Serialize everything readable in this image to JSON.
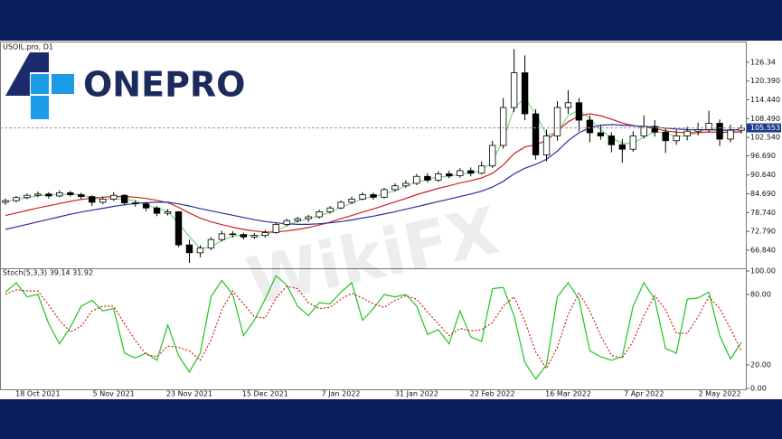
{
  "logo": "ONEPRO",
  "watermark": "WikiFX",
  "chart_data": [
    {
      "type": "candlestick",
      "title": "USOIL.pro, D1",
      "current_price": 105.553,
      "categories": [
        null,
        null,
        null,
        "18 Oct 2021",
        null,
        null,
        null,
        null,
        null,
        null,
        "5 Nov 2021",
        null,
        null,
        null,
        null,
        null,
        null,
        "23 Nov 2021",
        null,
        null,
        null,
        null,
        null,
        null,
        "15 Dec 2021",
        null,
        null,
        null,
        null,
        null,
        null,
        "7 Jan 2022",
        null,
        null,
        null,
        null,
        null,
        null,
        "31 Jan 2022",
        null,
        null,
        null,
        null,
        null,
        null,
        "22 Feb 2022",
        null,
        null,
        null,
        null,
        null,
        null,
        "16 Mar 2022",
        null,
        null,
        null,
        null,
        null,
        null,
        "7 Apr 2022",
        null,
        null,
        null,
        null,
        null,
        null,
        "2 May 2022",
        null,
        null
      ],
      "open": [
        82.0,
        82.5,
        83.5,
        84.2,
        84.6,
        84.0,
        85.0,
        84.4,
        83.8,
        82.0,
        83.0,
        84.2,
        81.8,
        81.5,
        80.2,
        78.5,
        79.0,
        68.5,
        66.0,
        67.5,
        70.2,
        72.0,
        71.8,
        71.0,
        71.5,
        72.4,
        75.0,
        76.2,
        76.8,
        77.4,
        79.0,
        80.2,
        82.0,
        83.0,
        84.4,
        83.6,
        86.0,
        87.2,
        88.0,
        90.2,
        89.0,
        91.0,
        90.4,
        92.0,
        91.2,
        93.5,
        100.0,
        112.0,
        123.0,
        110.0,
        97.0,
        103.0,
        112.0,
        113.5,
        108.0,
        104.0,
        103.0,
        100.2,
        98.8,
        103.0,
        106.0,
        104.2,
        101.5,
        103.0,
        104.5,
        105.0,
        107.0,
        102.0,
        104.8
      ],
      "high": [
        83.2,
        84.0,
        84.8,
        85.4,
        85.2,
        85.8,
        85.6,
        85.0,
        84.2,
        83.8,
        85.2,
        84.6,
        82.6,
        82.0,
        80.8,
        79.8,
        79.2,
        70.2,
        68.4,
        71.0,
        73.0,
        72.8,
        72.4,
        72.2,
        73.2,
        75.6,
        76.8,
        77.4,
        78.0,
        79.6,
        80.8,
        82.6,
        83.8,
        85.2,
        85.0,
        86.6,
        88.0,
        89.0,
        91.0,
        91.2,
        91.8,
        92.0,
        92.8,
        93.0,
        95.0,
        101.5,
        115.0,
        130.5,
        128.5,
        111.5,
        105.0,
        114.0,
        117.5,
        115.0,
        109.5,
        106.5,
        104.2,
        102.0,
        104.5,
        109.5,
        108.0,
        105.5,
        105.0,
        106.0,
        107.2,
        111.0,
        108.2,
        106.6,
        106.6
      ],
      "low": [
        81.2,
        82.0,
        83.0,
        83.6,
        83.2,
        83.6,
        83.8,
        83.0,
        80.8,
        81.4,
        82.4,
        81.0,
        80.6,
        79.2,
        77.6,
        77.8,
        67.8,
        62.8,
        64.6,
        66.8,
        69.6,
        70.8,
        70.2,
        70.4,
        70.8,
        72.0,
        74.4,
        75.6,
        75.8,
        76.8,
        78.4,
        79.8,
        81.4,
        82.6,
        82.8,
        83.2,
        85.4,
        86.6,
        87.4,
        88.2,
        88.4,
        89.6,
        89.8,
        90.2,
        90.8,
        92.8,
        99.0,
        110.5,
        108.0,
        95.5,
        95.0,
        101.5,
        110.0,
        104.5,
        101.0,
        101.8,
        97.8,
        94.5,
        98.0,
        102.2,
        102.8,
        97.6,
        100.2,
        101.6,
        103.2,
        104.2,
        99.8,
        101.0,
        103.8
      ],
      "close": [
        82.5,
        83.5,
        84.2,
        84.6,
        84.0,
        85.0,
        84.4,
        83.8,
        82.0,
        83.0,
        84.2,
        81.8,
        81.5,
        80.2,
        78.5,
        79.0,
        68.5,
        66.0,
        67.5,
        70.2,
        72.0,
        71.8,
        71.0,
        71.5,
        72.4,
        75.0,
        76.2,
        76.8,
        77.4,
        79.0,
        80.2,
        82.0,
        83.0,
        84.4,
        83.6,
        86.0,
        87.2,
        88.0,
        90.2,
        89.0,
        91.0,
        90.4,
        92.0,
        91.2,
        93.5,
        100.0,
        112.0,
        123.0,
        110.0,
        97.0,
        103.0,
        112.0,
        113.5,
        108.0,
        104.0,
        103.0,
        100.2,
        98.8,
        103.0,
        106.0,
        104.2,
        101.5,
        103.0,
        104.5,
        105.0,
        107.0,
        102.0,
        104.8,
        105.5
      ],
      "lines": [
        {
          "color": "#7fd67f",
          "values": [
            82.2,
            82.9,
            83.4,
            84.1,
            84.3,
            84.5,
            84.5,
            84.4,
            83.4,
            82.9,
            83.1,
            83.0,
            82.5,
            81.2,
            80.1,
            79.2,
            75.3,
            71.2,
            67.3,
            67.9,
            69.9,
            71.3,
            71.6,
            71.4,
            71.6,
            73.0,
            74.5,
            76.0,
            76.8,
            77.7,
            78.9,
            80.4,
            81.7,
            83.1,
            83.7,
            84.7,
            85.6,
            87.1,
            88.5,
            89.1,
            90.1,
            90.1,
            91.1,
            91.2,
            92.2,
            94.9,
            101.8,
            111.7,
            115.0,
            110.0,
            103.3,
            104.0,
            109.5,
            111.2,
            108.5,
            105.0,
            102.4,
            100.7,
            100.7,
            102.6,
            104.4,
            103.9,
            102.9,
            103.0,
            104.2,
            105.5,
            104.7,
            104.6,
            104.1
          ]
        },
        {
          "color": "#d0201c",
          "values": [
            77.8,
            78.6,
            79.4,
            80.2,
            80.9,
            81.6,
            82.3,
            82.9,
            83.3,
            83.6,
            83.8,
            83.8,
            83.6,
            83.2,
            82.6,
            81.9,
            80.4,
            78.6,
            77.0,
            75.8,
            74.9,
            74.1,
            73.4,
            72.9,
            72.6,
            72.6,
            72.9,
            73.4,
            74.0,
            74.8,
            75.7,
            76.8,
            77.8,
            78.9,
            79.9,
            81.0,
            82.1,
            83.2,
            84.4,
            85.4,
            86.4,
            87.2,
            88.1,
            88.8,
            89.7,
            91.2,
            93.8,
            97.4,
            99.5,
            100.2,
            101.6,
            104.5,
            107.5,
            109.3,
            110.0,
            109.4,
            108.3,
            107.1,
            106.3,
            105.8,
            105.4,
            104.6,
            104.2,
            104.0,
            104.0,
            104.3,
            104.1,
            104.2,
            104.3
          ]
        },
        {
          "color": "#2a2e9c",
          "values": [
            73.4,
            74.2,
            75.0,
            75.8,
            76.6,
            77.4,
            78.2,
            78.9,
            79.5,
            80.1,
            80.7,
            81.2,
            81.6,
            81.9,
            82.0,
            82.0,
            81.5,
            80.8,
            80.0,
            79.3,
            78.6,
            77.9,
            77.2,
            76.5,
            75.9,
            75.5,
            75.2,
            75.0,
            75.0,
            75.2,
            75.5,
            75.9,
            76.4,
            77.0,
            77.6,
            78.3,
            79.0,
            79.8,
            80.6,
            81.4,
            82.2,
            83.0,
            83.8,
            84.6,
            85.5,
            86.8,
            88.6,
            91.0,
            92.8,
            94.0,
            95.6,
            98.2,
            101.5,
            104.0,
            105.6,
            106.4,
            106.6,
            106.4,
            106.2,
            106.0,
            105.8,
            105.5,
            105.2,
            105.0,
            104.9,
            105.0,
            104.8,
            104.9,
            105.0
          ]
        }
      ],
      "ylim": [
        61.1,
        132.6
      ],
      "yticks": [
        {
          "value": 66.84,
          "label": "66.840"
        },
        {
          "value": 72.79,
          "label": "72.790"
        },
        {
          "value": 78.74,
          "label": "78.740"
        },
        {
          "value": 84.69,
          "label": "84.690"
        },
        {
          "value": 90.64,
          "label": "90.640"
        },
        {
          "value": 96.69,
          "label": "96.690"
        },
        {
          "value": 102.54,
          "label": "102.540"
        },
        {
          "value": 108.49,
          "label": "108.490"
        },
        {
          "value": 114.44,
          "label": "114.440"
        },
        {
          "value": 120.39,
          "label": "120.390"
        },
        126.34
      ],
      "up_color": "#ffffff",
      "down_color": "#000000",
      "grid": false
    },
    {
      "type": "line",
      "title": "Stoch(5,3,3) 39.14 31.92",
      "series": [
        {
          "color": "#22c322",
          "style": "solid",
          "values": [
            82,
            90,
            78,
            80,
            55,
            38,
            52,
            70,
            75,
            66,
            68,
            30,
            26,
            30,
            24,
            54,
            28,
            14,
            30,
            78,
            92,
            80,
            45,
            58,
            76,
            96,
            88,
            70,
            62,
            73,
            72,
            82,
            90,
            58,
            68,
            80,
            78,
            80,
            70,
            46,
            50,
            38,
            66,
            44,
            40,
            85,
            86,
            62,
            22,
            8,
            20,
            78,
            90,
            76,
            32,
            27,
            24,
            27,
            70,
            90,
            76,
            34,
            30,
            76,
            77,
            82,
            45,
            25,
            39.14
          ]
        },
        {
          "color": "#d0201c",
          "style": "dotted",
          "values": [
            80,
            84,
            83,
            83,
            71,
            58,
            48,
            53,
            66,
            70,
            70,
            55,
            41,
            29,
            27,
            36,
            35,
            32,
            24,
            41,
            67,
            83,
            72,
            61,
            60,
            77,
            87,
            85,
            73,
            68,
            69,
            76,
            81,
            77,
            72,
            69,
            75,
            79,
            76,
            65,
            55,
            45,
            51,
            49,
            50,
            56,
            70,
            78,
            57,
            31,
            17,
            35,
            63,
            81,
            66,
            45,
            28,
            26,
            40,
            62,
            79,
            67,
            47,
            47,
            61,
            78,
            68,
            51,
            31.92
          ]
        }
      ],
      "ylim": [
        0,
        100
      ],
      "yticks": [
        {
          "value": 0,
          "label": "0.00"
        },
        {
          "value": 20,
          "label": "20.00"
        },
        {
          "value": 80,
          "label": "80.00"
        },
        {
          "value": 100,
          "label": "100.00"
        }
      ],
      "grid": false
    }
  ]
}
